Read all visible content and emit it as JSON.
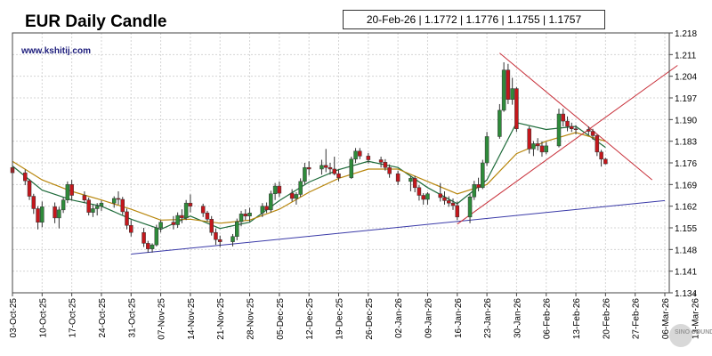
{
  "header": {
    "title": "EUR Daily Candle",
    "website": "www.kshitij.com",
    "ohlc_readout": "20-Feb-26 | 1.1772 | 1.1776 | 1.1755 | 1.1757"
  },
  "watermark": {
    "text": "SINO SOUND"
  },
  "colors": {
    "up": "#2e8b3a",
    "down": "#c4171c",
    "ma_fast": "#1e6b3a",
    "ma_slow": "#b8860b",
    "support": "#3a3aa8",
    "triangle": "#c8303a",
    "grid": "#d4d4d4"
  },
  "chart_data": {
    "type": "candlestick",
    "ylim": [
      1.134,
      1.218
    ],
    "y_ticks": [
      "1.218",
      "1.211",
      "1.204",
      "1.197",
      "1.190",
      "1.183",
      "1.176",
      "1.169",
      "1.162",
      "1.155",
      "1.148",
      "1.141",
      "1.134"
    ],
    "x_range": [
      "2025-10-03",
      "2026-03-06"
    ],
    "x_ticks": [
      {
        "date": "2025-10-03",
        "label": "03-Oct-25"
      },
      {
        "date": "2025-10-10",
        "label": "10-Oct-25"
      },
      {
        "date": "2025-10-17",
        "label": "17-Oct-25"
      },
      {
        "date": "2025-10-24",
        "label": "24-Oct-25"
      },
      {
        "date": "2025-10-31",
        "label": "31-Oct-25"
      },
      {
        "date": "2025-11-07",
        "label": "07-Nov-25"
      },
      {
        "date": "2025-11-14",
        "label": "14-Nov-25"
      },
      {
        "date": "2025-11-21",
        "label": "21-Nov-25"
      },
      {
        "date": "2025-11-28",
        "label": "28-Nov-25"
      },
      {
        "date": "2025-12-05",
        "label": "05-Dec-25"
      },
      {
        "date": "2025-12-12",
        "label": "12-Dec-25"
      },
      {
        "date": "2025-12-19",
        "label": "19-Dec-25"
      },
      {
        "date": "2025-12-26",
        "label": "26-Dec-25"
      },
      {
        "date": "2026-01-02",
        "label": "02-Jan-26"
      },
      {
        "date": "2026-01-09",
        "label": "09-Jan-26"
      },
      {
        "date": "2026-01-16",
        "label": "16-Jan-26"
      },
      {
        "date": "2026-01-23",
        "label": "23-Jan-26"
      },
      {
        "date": "2026-01-30",
        "label": "30-Jan-26"
      },
      {
        "date": "2026-02-06",
        "label": "06-Feb-26"
      },
      {
        "date": "2026-02-13",
        "label": "13-Feb-26"
      },
      {
        "date": "2026-02-20",
        "label": "20-Feb-26"
      },
      {
        "date": "2026-02-27",
        "label": "27-Feb-26"
      },
      {
        "date": "2026-03-06",
        "label": "06-Mar-26"
      },
      {
        "date": "2026-03-13",
        "label": "13-Mar-26"
      }
    ],
    "grid": true,
    "candles": [
      {
        "d": "2025-10-03",
        "o": 1.1745,
        "h": 1.1762,
        "l": 1.1722,
        "c": 1.1728
      },
      {
        "d": "2025-10-06",
        "o": 1.1728,
        "h": 1.1738,
        "l": 1.1688,
        "c": 1.1702
      },
      {
        "d": "2025-10-07",
        "o": 1.1702,
        "h": 1.1708,
        "l": 1.164,
        "c": 1.1652
      },
      {
        "d": "2025-10-08",
        "o": 1.1652,
        "h": 1.166,
        "l": 1.1595,
        "c": 1.1612
      },
      {
        "d": "2025-10-09",
        "o": 1.1612,
        "h": 1.162,
        "l": 1.1545,
        "c": 1.1568
      },
      {
        "d": "2025-10-10",
        "o": 1.1568,
        "h": 1.1635,
        "l": 1.1552,
        "c": 1.1618
      },
      {
        "d": "2025-10-13",
        "o": 1.1618,
        "h": 1.1632,
        "l": 1.1565,
        "c": 1.1582
      },
      {
        "d": "2025-10-14",
        "o": 1.1582,
        "h": 1.1618,
        "l": 1.1548,
        "c": 1.1608
      },
      {
        "d": "2025-10-15",
        "o": 1.1608,
        "h": 1.1648,
        "l": 1.1598,
        "c": 1.164
      },
      {
        "d": "2025-10-16",
        "o": 1.164,
        "h": 1.17,
        "l": 1.163,
        "c": 1.169
      },
      {
        "d": "2025-10-17",
        "o": 1.169,
        "h": 1.1705,
        "l": 1.1638,
        "c": 1.1655
      },
      {
        "d": "2025-10-20",
        "o": 1.1655,
        "h": 1.1668,
        "l": 1.163,
        "c": 1.164
      },
      {
        "d": "2025-10-21",
        "o": 1.164,
        "h": 1.1648,
        "l": 1.159,
        "c": 1.16
      },
      {
        "d": "2025-10-22",
        "o": 1.16,
        "h": 1.1625,
        "l": 1.1585,
        "c": 1.1612
      },
      {
        "d": "2025-10-23",
        "o": 1.1612,
        "h": 1.163,
        "l": 1.159,
        "c": 1.162
      },
      {
        "d": "2025-10-24",
        "o": 1.162,
        "h": 1.1638,
        "l": 1.1605,
        "c": 1.163
      },
      {
        "d": "2025-10-27",
        "o": 1.163,
        "h": 1.1652,
        "l": 1.1615,
        "c": 1.1645
      },
      {
        "d": "2025-10-28",
        "o": 1.1645,
        "h": 1.1668,
        "l": 1.1625,
        "c": 1.1642
      },
      {
        "d": "2025-10-29",
        "o": 1.1642,
        "h": 1.165,
        "l": 1.1592,
        "c": 1.1602
      },
      {
        "d": "2025-10-30",
        "o": 1.1602,
        "h": 1.1612,
        "l": 1.1545,
        "c": 1.1558
      },
      {
        "d": "2025-10-31",
        "o": 1.1558,
        "h": 1.1575,
        "l": 1.1522,
        "c": 1.1535
      },
      {
        "d": "2025-11-03",
        "o": 1.1535,
        "h": 1.155,
        "l": 1.1488,
        "c": 1.15
      },
      {
        "d": "2025-11-04",
        "o": 1.15,
        "h": 1.1508,
        "l": 1.147,
        "c": 1.1482
      },
      {
        "d": "2025-11-05",
        "o": 1.1482,
        "h": 1.15,
        "l": 1.147,
        "c": 1.1495
      },
      {
        "d": "2025-11-06",
        "o": 1.1495,
        "h": 1.156,
        "l": 1.149,
        "c": 1.155
      },
      {
        "d": "2025-11-07",
        "o": 1.155,
        "h": 1.1575,
        "l": 1.1535,
        "c": 1.1568
      },
      {
        "d": "2025-11-10",
        "o": 1.1568,
        "h": 1.1588,
        "l": 1.1545,
        "c": 1.156
      },
      {
        "d": "2025-11-11",
        "o": 1.156,
        "h": 1.16,
        "l": 1.155,
        "c": 1.159
      },
      {
        "d": "2025-11-12",
        "o": 1.159,
        "h": 1.161,
        "l": 1.1565,
        "c": 1.1582
      },
      {
        "d": "2025-11-13",
        "o": 1.1582,
        "h": 1.164,
        "l": 1.1575,
        "c": 1.163
      },
      {
        "d": "2025-11-14",
        "o": 1.163,
        "h": 1.1658,
        "l": 1.16,
        "c": 1.162
      },
      {
        "d": "2025-11-17",
        "o": 1.162,
        "h": 1.1628,
        "l": 1.1585,
        "c": 1.1598
      },
      {
        "d": "2025-11-18",
        "o": 1.1598,
        "h": 1.1605,
        "l": 1.157,
        "c": 1.1578
      },
      {
        "d": "2025-11-19",
        "o": 1.1578,
        "h": 1.1588,
        "l": 1.1525,
        "c": 1.1535
      },
      {
        "d": "2025-11-20",
        "o": 1.1535,
        "h": 1.1548,
        "l": 1.1495,
        "c": 1.1512
      },
      {
        "d": "2025-11-21",
        "o": 1.1512,
        "h": 1.1525,
        "l": 1.1488,
        "c": 1.1505
      },
      {
        "d": "2025-11-24",
        "o": 1.1505,
        "h": 1.153,
        "l": 1.149,
        "c": 1.1522
      },
      {
        "d": "2025-11-25",
        "o": 1.1522,
        "h": 1.158,
        "l": 1.151,
        "c": 1.157
      },
      {
        "d": "2025-11-26",
        "o": 1.157,
        "h": 1.1605,
        "l": 1.1555,
        "c": 1.1595
      },
      {
        "d": "2025-11-27",
        "o": 1.1595,
        "h": 1.161,
        "l": 1.1575,
        "c": 1.1588
      },
      {
        "d": "2025-11-28",
        "o": 1.1588,
        "h": 1.1615,
        "l": 1.157,
        "c": 1.1598
      },
      {
        "d": "2025-12-01",
        "o": 1.1598,
        "h": 1.163,
        "l": 1.1585,
        "c": 1.162
      },
      {
        "d": "2025-12-02",
        "o": 1.162,
        "h": 1.1632,
        "l": 1.1598,
        "c": 1.1608
      },
      {
        "d": "2025-12-03",
        "o": 1.1608,
        "h": 1.167,
        "l": 1.16,
        "c": 1.166
      },
      {
        "d": "2025-12-04",
        "o": 1.166,
        "h": 1.1695,
        "l": 1.164,
        "c": 1.1685
      },
      {
        "d": "2025-12-05",
        "o": 1.1685,
        "h": 1.17,
        "l": 1.165,
        "c": 1.1662
      },
      {
        "d": "2025-12-08",
        "o": 1.1662,
        "h": 1.1675,
        "l": 1.1635,
        "c": 1.1645
      },
      {
        "d": "2025-12-09",
        "o": 1.1645,
        "h": 1.1665,
        "l": 1.1625,
        "c": 1.1658
      },
      {
        "d": "2025-12-10",
        "o": 1.1658,
        "h": 1.171,
        "l": 1.165,
        "c": 1.17
      },
      {
        "d": "2025-12-11",
        "o": 1.17,
        "h": 1.176,
        "l": 1.169,
        "c": 1.1745
      },
      {
        "d": "2025-12-12",
        "o": 1.1745,
        "h": 1.1765,
        "l": 1.172,
        "c": 1.174
      },
      {
        "d": "2025-12-15",
        "o": 1.174,
        "h": 1.177,
        "l": 1.1722,
        "c": 1.1752
      },
      {
        "d": "2025-12-16",
        "o": 1.1752,
        "h": 1.1805,
        "l": 1.173,
        "c": 1.1745
      },
      {
        "d": "2025-12-17",
        "o": 1.1745,
        "h": 1.176,
        "l": 1.1722,
        "c": 1.174
      },
      {
        "d": "2025-12-18",
        "o": 1.174,
        "h": 1.178,
        "l": 1.172,
        "c": 1.1725
      },
      {
        "d": "2025-12-19",
        "o": 1.1725,
        "h": 1.1738,
        "l": 1.17,
        "c": 1.1712
      },
      {
        "d": "2025-12-22",
        "o": 1.1712,
        "h": 1.178,
        "l": 1.1708,
        "c": 1.1772
      },
      {
        "d": "2025-12-23",
        "o": 1.1772,
        "h": 1.1808,
        "l": 1.176,
        "c": 1.1798
      },
      {
        "d": "2025-12-24",
        "o": 1.1798,
        "h": 1.1808,
        "l": 1.1772,
        "c": 1.1782
      },
      {
        "d": "2025-12-26",
        "o": 1.1782,
        "h": 1.1792,
        "l": 1.1758,
        "c": 1.177
      },
      {
        "d": "2025-12-29",
        "o": 1.177,
        "h": 1.178,
        "l": 1.1745,
        "c": 1.1762
      },
      {
        "d": "2025-12-30",
        "o": 1.1762,
        "h": 1.1772,
        "l": 1.1735,
        "c": 1.1745
      },
      {
        "d": "2025-12-31",
        "o": 1.1745,
        "h": 1.1755,
        "l": 1.1712,
        "c": 1.1725
      },
      {
        "d": "2026-01-02",
        "o": 1.1725,
        "h": 1.1735,
        "l": 1.1688,
        "c": 1.17
      },
      {
        "d": "2026-01-05",
        "o": 1.17,
        "h": 1.1718,
        "l": 1.1668,
        "c": 1.171
      },
      {
        "d": "2026-01-06",
        "o": 1.171,
        "h": 1.1718,
        "l": 1.1665,
        "c": 1.168
      },
      {
        "d": "2026-01-07",
        "o": 1.168,
        "h": 1.1688,
        "l": 1.1638,
        "c": 1.1655
      },
      {
        "d": "2026-01-08",
        "o": 1.1655,
        "h": 1.1662,
        "l": 1.1625,
        "c": 1.1642
      },
      {
        "d": "2026-01-09",
        "o": 1.1642,
        "h": 1.1665,
        "l": 1.1625,
        "c": 1.166
      },
      {
        "d": "2026-01-12",
        "o": 1.166,
        "h": 1.1695,
        "l": 1.1635,
        "c": 1.1648
      },
      {
        "d": "2026-01-13",
        "o": 1.1648,
        "h": 1.1668,
        "l": 1.1625,
        "c": 1.1638
      },
      {
        "d": "2026-01-14",
        "o": 1.1638,
        "h": 1.1652,
        "l": 1.1618,
        "c": 1.163
      },
      {
        "d": "2026-01-15",
        "o": 1.163,
        "h": 1.1645,
        "l": 1.1608,
        "c": 1.1622
      },
      {
        "d": "2026-01-16",
        "o": 1.1622,
        "h": 1.1635,
        "l": 1.1575,
        "c": 1.1585
      },
      {
        "d": "2026-01-19",
        "o": 1.1585,
        "h": 1.166,
        "l": 1.1565,
        "c": 1.165
      },
      {
        "d": "2026-01-20",
        "o": 1.165,
        "h": 1.1702,
        "l": 1.164,
        "c": 1.169
      },
      {
        "d": "2026-01-21",
        "o": 1.169,
        "h": 1.1712,
        "l": 1.1668,
        "c": 1.168
      },
      {
        "d": "2026-01-22",
        "o": 1.168,
        "h": 1.177,
        "l": 1.1675,
        "c": 1.176
      },
      {
        "d": "2026-01-23",
        "o": 1.176,
        "h": 1.186,
        "l": 1.175,
        "c": 1.1845
      },
      {
        "d": "2026-01-26",
        "o": 1.1845,
        "h": 1.195,
        "l": 1.1838,
        "c": 1.193
      },
      {
        "d": "2026-01-27",
        "o": 1.193,
        "h": 1.2085,
        "l": 1.1925,
        "c": 1.206
      },
      {
        "d": "2026-01-28",
        "o": 1.206,
        "h": 1.208,
        "l": 1.195,
        "c": 1.1965
      },
      {
        "d": "2026-01-29",
        "o": 1.1965,
        "h": 1.2035,
        "l": 1.1948,
        "c": 1.2
      },
      {
        "d": "2026-01-30",
        "o": 1.2,
        "h": 1.2005,
        "l": 1.186,
        "c": 1.187
      },
      {
        "d": "2026-02-02",
        "o": 1.187,
        "h": 1.1878,
        "l": 1.179,
        "c": 1.1805
      },
      {
        "d": "2026-02-03",
        "o": 1.1805,
        "h": 1.183,
        "l": 1.1782,
        "c": 1.1822
      },
      {
        "d": "2026-02-04",
        "o": 1.1822,
        "h": 1.184,
        "l": 1.18,
        "c": 1.1815
      },
      {
        "d": "2026-02-05",
        "o": 1.1815,
        "h": 1.183,
        "l": 1.178,
        "c": 1.1795
      },
      {
        "d": "2026-02-06",
        "o": 1.1795,
        "h": 1.1828,
        "l": 1.1788,
        "c": 1.1815
      },
      {
        "d": "2026-02-09",
        "o": 1.1815,
        "h": 1.1935,
        "l": 1.181,
        "c": 1.1918
      },
      {
        "d": "2026-02-10",
        "o": 1.1918,
        "h": 1.1935,
        "l": 1.1878,
        "c": 1.1895
      },
      {
        "d": "2026-02-11",
        "o": 1.1895,
        "h": 1.191,
        "l": 1.1862,
        "c": 1.1878
      },
      {
        "d": "2026-02-12",
        "o": 1.1878,
        "h": 1.189,
        "l": 1.186,
        "c": 1.187
      },
      {
        "d": "2026-02-13",
        "o": 1.187,
        "h": 1.1882,
        "l": 1.1852,
        "c": 1.1868
      },
      {
        "d": "2026-02-16",
        "o": 1.1868,
        "h": 1.1878,
        "l": 1.185,
        "c": 1.1862
      },
      {
        "d": "2026-02-17",
        "o": 1.1862,
        "h": 1.187,
        "l": 1.1835,
        "c": 1.1848
      },
      {
        "d": "2026-02-18",
        "o": 1.1848,
        "h": 1.1852,
        "l": 1.1782,
        "c": 1.1795
      },
      {
        "d": "2026-02-19",
        "o": 1.1795,
        "h": 1.1802,
        "l": 1.1748,
        "c": 1.1772
      },
      {
        "d": "2026-02-20",
        "o": 1.1772,
        "h": 1.1776,
        "l": 1.1755,
        "c": 1.1757
      }
    ],
    "moving_averages": [
      {
        "key": "ma_fast",
        "points": [
          [
            "2025-10-03",
            1.175
          ],
          [
            "2025-10-10",
            1.1672
          ],
          [
            "2025-10-17",
            1.164
          ],
          [
            "2025-10-24",
            1.162
          ],
          [
            "2025-10-31",
            1.1578
          ],
          [
            "2025-11-07",
            1.1545
          ],
          [
            "2025-11-14",
            1.1588
          ],
          [
            "2025-11-21",
            1.1548
          ],
          [
            "2025-11-28",
            1.1568
          ],
          [
            "2025-12-05",
            1.1638
          ],
          [
            "2025-12-12",
            1.1698
          ],
          [
            "2025-12-19",
            1.1738
          ],
          [
            "2025-12-26",
            1.1765
          ],
          [
            "2026-01-02",
            1.1745
          ],
          [
            "2026-01-09",
            1.168
          ],
          [
            "2026-01-16",
            1.1628
          ],
          [
            "2026-01-23",
            1.1705
          ],
          [
            "2026-01-30",
            1.189
          ],
          [
            "2026-02-06",
            1.1868
          ],
          [
            "2026-02-13",
            1.1878
          ],
          [
            "2026-02-20",
            1.181
          ]
        ]
      },
      {
        "key": "ma_slow",
        "points": [
          [
            "2025-10-03",
            1.1765
          ],
          [
            "2025-10-10",
            1.1705
          ],
          [
            "2025-10-17",
            1.1668
          ],
          [
            "2025-10-24",
            1.164
          ],
          [
            "2025-10-31",
            1.161
          ],
          [
            "2025-11-07",
            1.1575
          ],
          [
            "2025-11-14",
            1.1578
          ],
          [
            "2025-11-21",
            1.1565
          ],
          [
            "2025-11-28",
            1.1575
          ],
          [
            "2025-12-05",
            1.161
          ],
          [
            "2025-12-12",
            1.1665
          ],
          [
            "2025-12-19",
            1.171
          ],
          [
            "2025-12-26",
            1.174
          ],
          [
            "2026-01-02",
            1.174
          ],
          [
            "2026-01-09",
            1.17
          ],
          [
            "2026-01-16",
            1.166
          ],
          [
            "2026-01-23",
            1.169
          ],
          [
            "2026-01-30",
            1.179
          ],
          [
            "2026-02-06",
            1.183
          ],
          [
            "2026-02-13",
            1.1858
          ],
          [
            "2026-02-20",
            1.183
          ]
        ]
      }
    ],
    "trendlines": [
      {
        "key": "support",
        "from": [
          "2025-10-31",
          1.1465
        ],
        "to": [
          "2026-03-06",
          1.1638
        ]
      },
      {
        "key": "triangle",
        "from": [
          "2026-01-26",
          1.2115
        ],
        "to": [
          "2026-03-03",
          1.1705
        ]
      },
      {
        "key": "triangle",
        "from": [
          "2026-01-16",
          1.1562
        ],
        "to": [
          "2026-03-09",
          1.2075
        ]
      }
    ]
  }
}
